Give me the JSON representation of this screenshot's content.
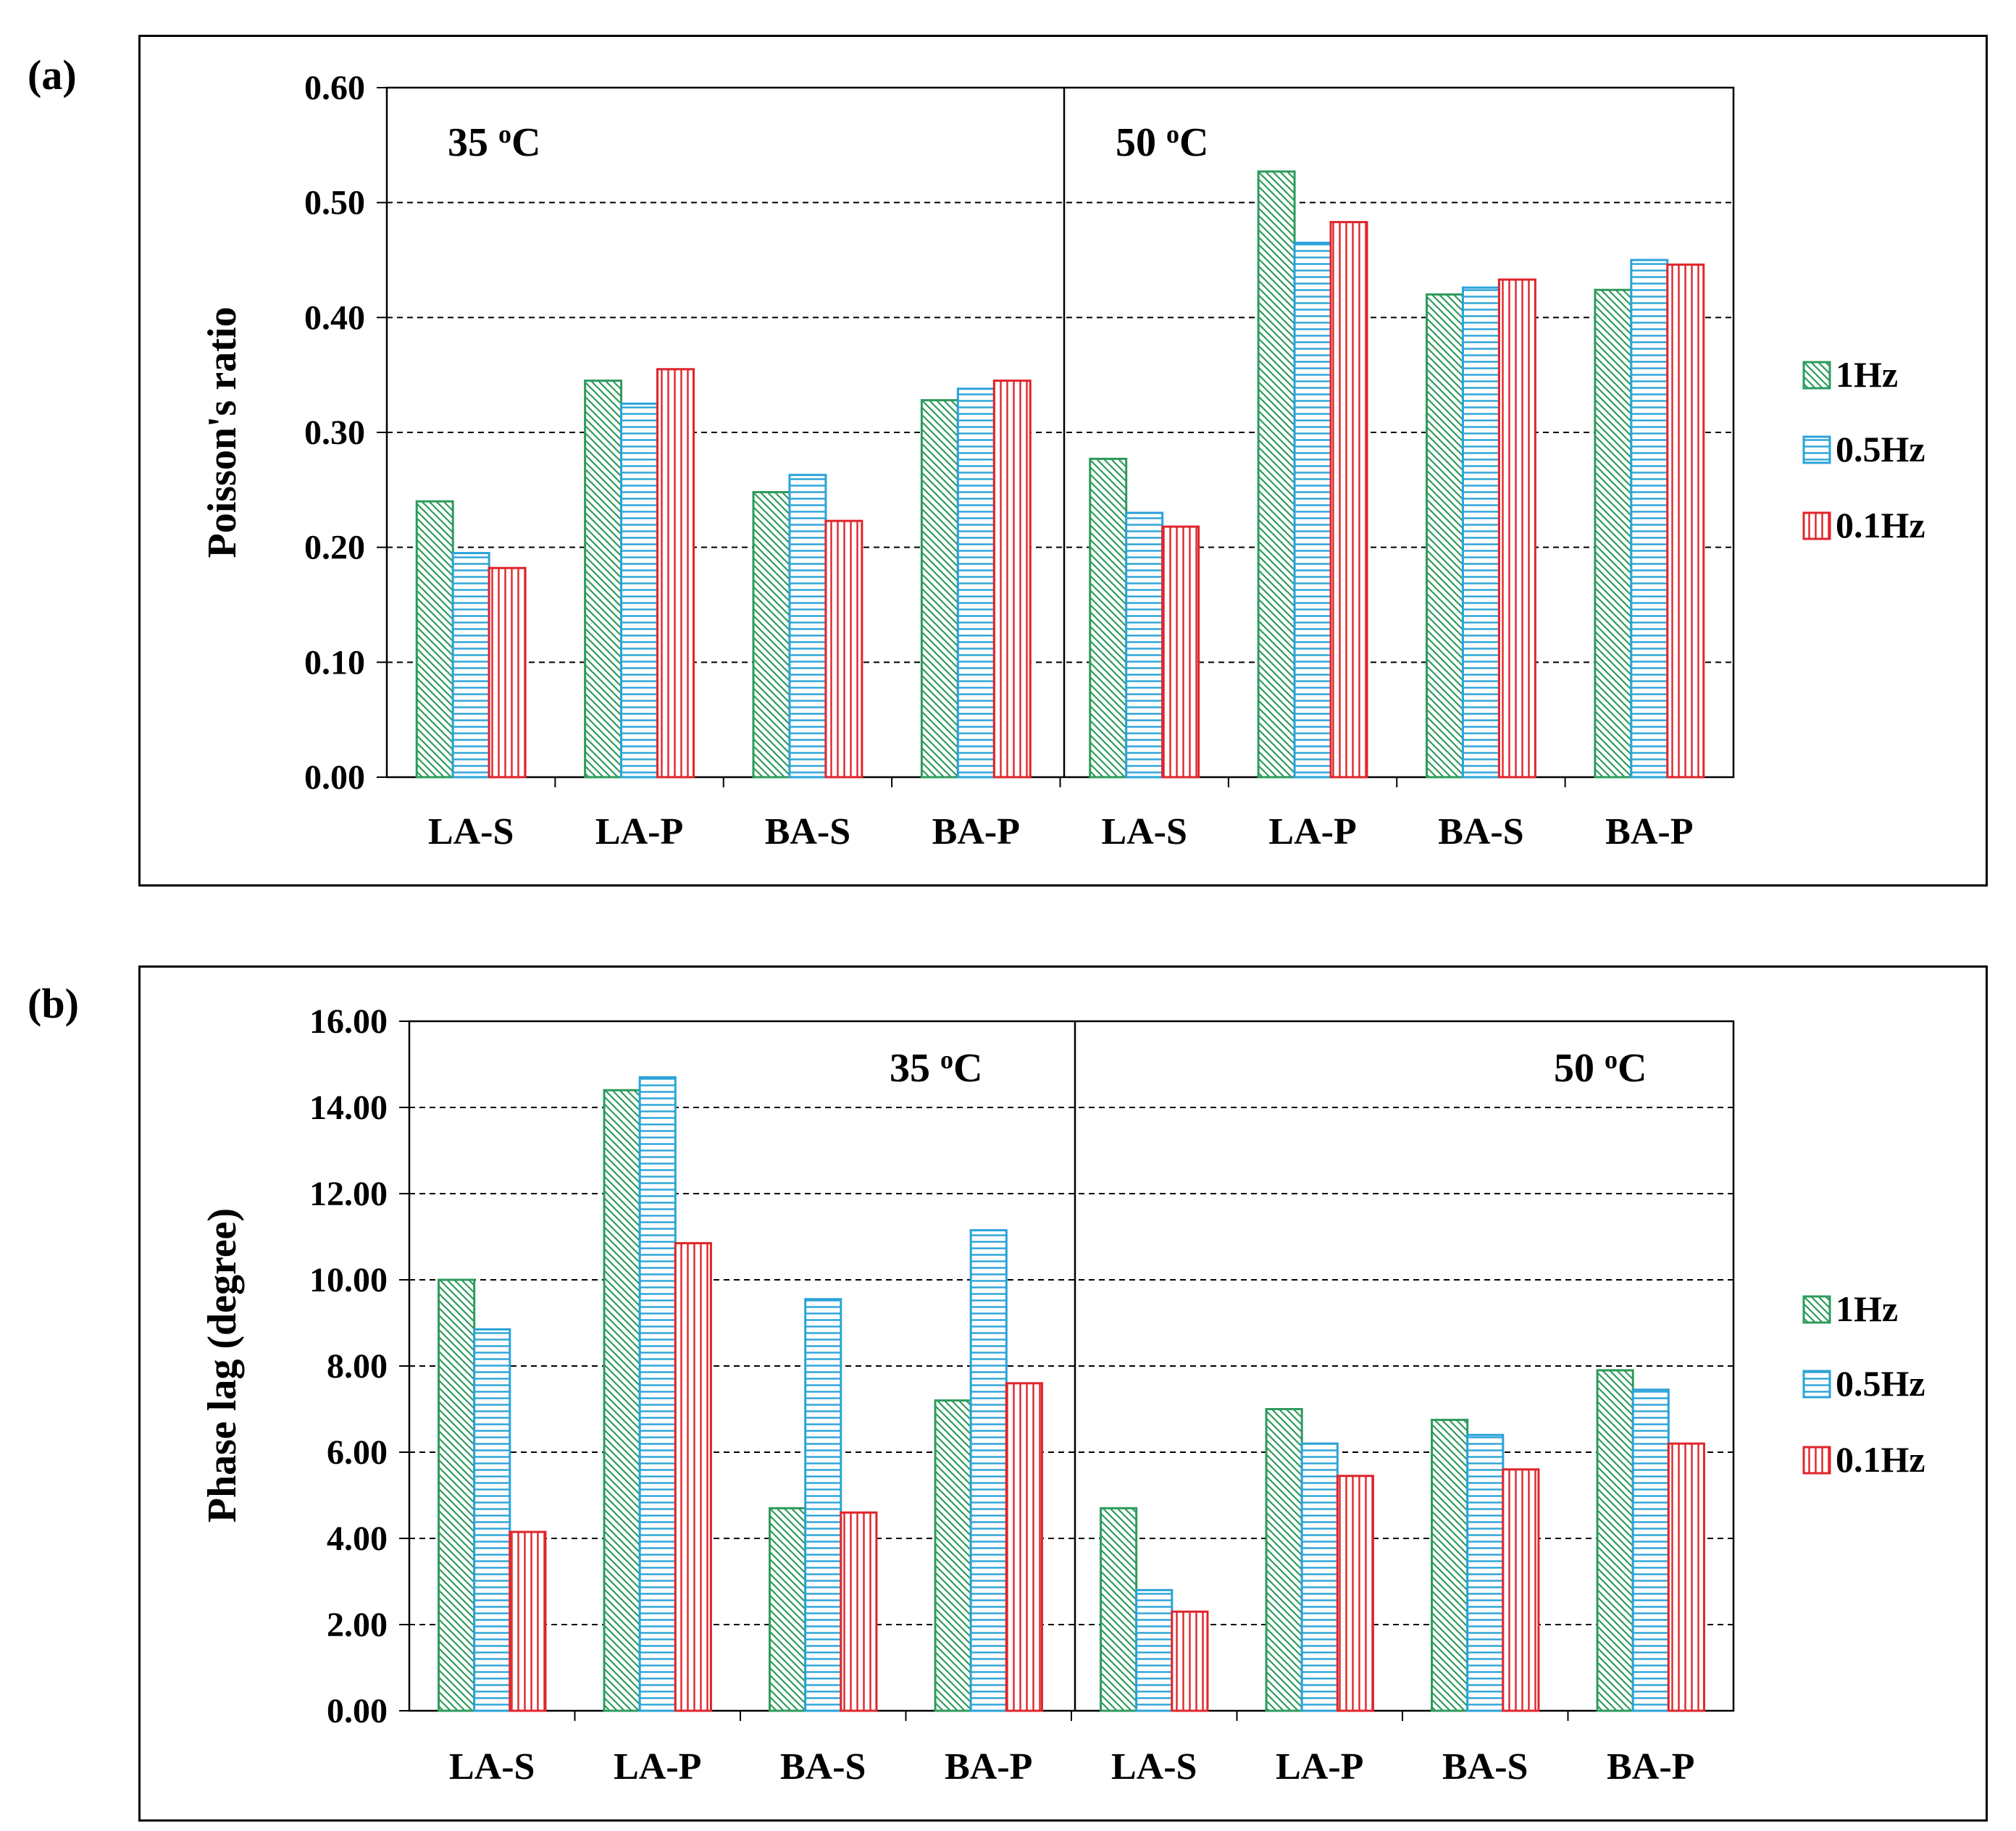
{
  "colors": {
    "1Hz": "#2e9b5c",
    "0.5Hz": "#2aa3d8",
    "0.1Hz": "#e0242b"
  },
  "panels": [
    {
      "letter": "(a)"
    },
    {
      "letter": "(b)"
    }
  ],
  "chart_data": [
    {
      "type": "bar",
      "title": "",
      "xlabel": "",
      "ylabel": "Poisson's ratio",
      "ylim": [
        0,
        0.6
      ],
      "yticks": [
        "0.00",
        "0.10",
        "0.20",
        "0.30",
        "0.40",
        "0.50",
        "0.60"
      ],
      "grid": "horizontal dashed",
      "groups": [
        {
          "label": "35 °C",
          "label_main": "35 ",
          "label_sup": "o",
          "label_unit": "C"
        },
        {
          "label": "50 °C",
          "label_main": "50 ",
          "label_sup": "o",
          "label_unit": "C"
        }
      ],
      "categories": [
        "LA-S",
        "LA-P",
        "BA-S",
        "BA-P",
        "LA-S",
        "LA-P",
        "BA-S",
        "BA-P"
      ],
      "series": [
        {
          "name": "1Hz",
          "values": [
            0.24,
            0.345,
            0.248,
            0.328,
            0.277,
            0.527,
            0.42,
            0.424
          ]
        },
        {
          "name": "0.5Hz",
          "values": [
            0.195,
            0.325,
            0.263,
            0.338,
            0.23,
            0.465,
            0.426,
            0.45
          ]
        },
        {
          "name": "0.1Hz",
          "values": [
            0.182,
            0.355,
            0.223,
            0.345,
            0.218,
            0.483,
            0.433,
            0.446
          ]
        }
      ],
      "legend": [
        "1Hz",
        "0.5Hz",
        "0.1Hz"
      ],
      "legend_position": "right"
    },
    {
      "type": "bar",
      "title": "",
      "xlabel": "",
      "ylabel": "Phase lag (degree)",
      "ylim": [
        0,
        16
      ],
      "yticks": [
        "0.00",
        "2.00",
        "4.00",
        "6.00",
        "8.00",
        "10.00",
        "12.00",
        "14.00",
        "16.00"
      ],
      "grid": "horizontal dashed",
      "groups": [
        {
          "label": "35 °C",
          "label_main": "35 ",
          "label_sup": "o",
          "label_unit": "C"
        },
        {
          "label": "50 °C",
          "label_main": "50 ",
          "label_sup": "o",
          "label_unit": "C"
        }
      ],
      "categories": [
        "LA-S",
        "LA-P",
        "BA-S",
        "BA-P",
        "LA-S",
        "LA-P",
        "BA-S",
        "BA-P"
      ],
      "series": [
        {
          "name": "1Hz",
          "values": [
            10.0,
            14.4,
            4.7,
            7.2,
            4.7,
            7.0,
            6.75,
            7.9
          ]
        },
        {
          "name": "0.5Hz",
          "values": [
            8.85,
            14.7,
            9.55,
            11.15,
            2.8,
            6.2,
            6.4,
            7.45
          ]
        },
        {
          "name": "0.1Hz",
          "values": [
            4.15,
            10.85,
            4.6,
            7.6,
            2.3,
            5.45,
            5.6,
            6.2
          ]
        }
      ],
      "legend": [
        "1Hz",
        "0.5Hz",
        "0.1Hz"
      ],
      "legend_position": "right"
    }
  ]
}
